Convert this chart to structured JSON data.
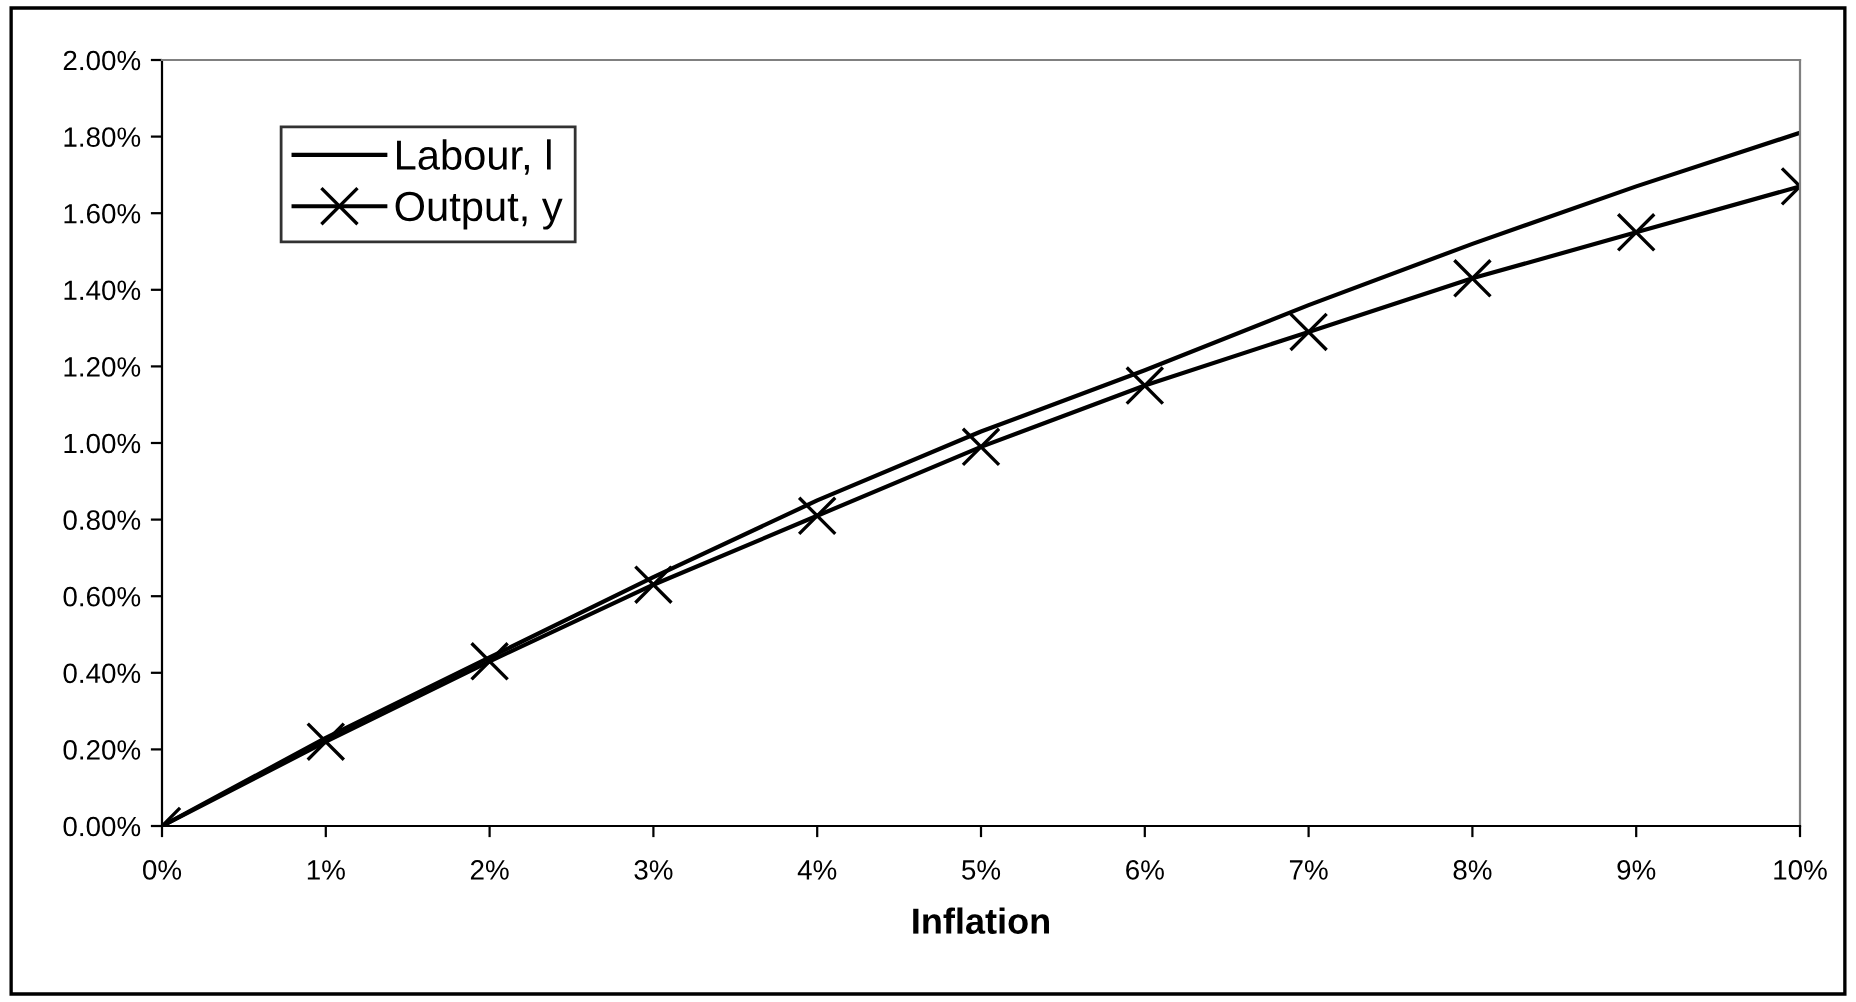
{
  "chart_data": {
    "type": "line",
    "xlabel": "Inflation",
    "x": [
      0,
      1,
      2,
      3,
      4,
      5,
      6,
      7,
      8,
      9,
      10
    ],
    "series": [
      {
        "name": "Labour, l",
        "color": "#000000",
        "marker": "none",
        "values": [
          0,
          0.23,
          0.44,
          0.65,
          0.85,
          1.03,
          1.19,
          1.36,
          1.52,
          1.67,
          1.81
        ]
      },
      {
        "name": "Output, y",
        "color": "#000000",
        "marker": "cross",
        "values": [
          0,
          0.22,
          0.43,
          0.63,
          0.81,
          0.99,
          1.15,
          1.29,
          1.43,
          1.55,
          1.67
        ]
      }
    ],
    "xlim": [
      0,
      10
    ],
    "xticks": [
      {
        "value": 0,
        "label": "0%"
      },
      {
        "value": 1,
        "label": "1%"
      },
      {
        "value": 2,
        "label": "2%"
      },
      {
        "value": 3,
        "label": "3%"
      },
      {
        "value": 4,
        "label": "4%"
      },
      {
        "value": 5,
        "label": "5%"
      },
      {
        "value": 6,
        "label": "6%"
      },
      {
        "value": 7,
        "label": "7%"
      },
      {
        "value": 8,
        "label": "8%"
      },
      {
        "value": 9,
        "label": "9%"
      },
      {
        "value": 10,
        "label": "10%"
      }
    ],
    "ylim": [
      0,
      2
    ],
    "yticks": [
      {
        "value": 0,
        "label": "0.00%"
      },
      {
        "value": 0.2,
        "label": "0.20%"
      },
      {
        "value": 0.4,
        "label": "0.40%"
      },
      {
        "value": 0.6,
        "label": "0.60%"
      },
      {
        "value": 0.8,
        "label": "0.80%"
      },
      {
        "value": 1.0,
        "label": "1.00%"
      },
      {
        "value": 1.2,
        "label": "1.20%"
      },
      {
        "value": 1.4,
        "label": "1.40%"
      },
      {
        "value": 1.6,
        "label": "1.60%"
      },
      {
        "value": 1.8,
        "label": "1.80%"
      },
      {
        "value": 2.0,
        "label": "2.00%"
      }
    ],
    "grid": false,
    "legend": "top left",
    "line_style": "solid"
  }
}
